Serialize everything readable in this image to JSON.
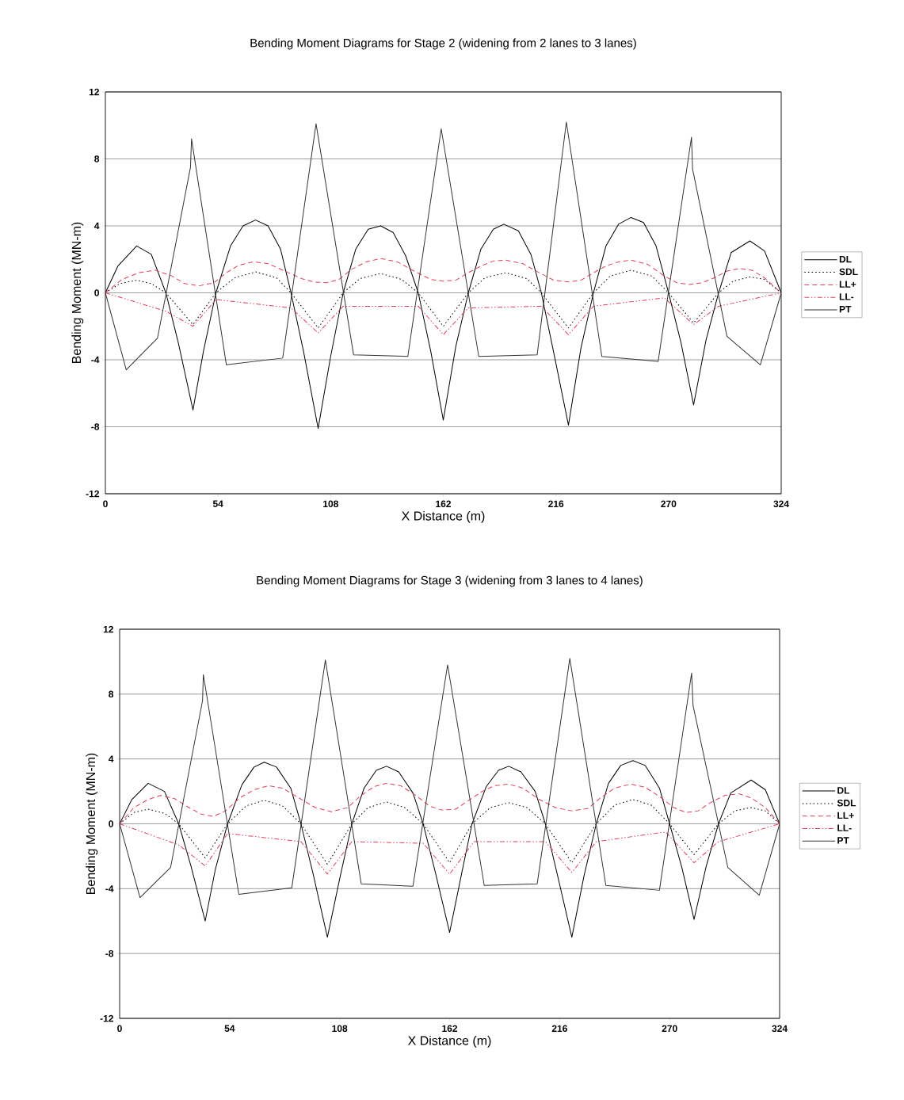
{
  "chart_data": [
    {
      "type": "line",
      "title": "Bending Moment Diagrams for Stage 2 (widening from 2 lanes to 3 lanes)",
      "xlabel": "X Distance (m)",
      "ylabel": "Bending Moment (MN-m)",
      "xlim": [
        0,
        324
      ],
      "ylim": [
        -12,
        12
      ],
      "xticks": [
        0,
        54,
        108,
        162,
        216,
        270,
        324
      ],
      "yticks": [
        -12,
        -8,
        -4,
        0,
        4,
        8,
        12
      ],
      "grid": "y",
      "legend": "right",
      "series": [
        {
          "name": "DL",
          "color": "#000000",
          "line_style": "solid",
          "x": [
            0,
            6,
            15,
            22,
            29,
            35,
            42,
            47,
            53,
            60,
            66,
            72,
            78,
            84,
            89,
            95,
            102,
            108,
            114,
            120,
            126,
            132,
            138,
            144,
            150,
            156,
            162,
            168,
            174,
            180,
            186,
            191,
            198,
            204,
            209,
            215,
            222,
            228,
            234,
            240,
            246,
            252,
            258,
            264,
            270,
            276,
            282,
            288,
            294,
            300,
            309,
            316,
            324
          ],
          "values": [
            0,
            1.6,
            2.8,
            2.3,
            0,
            -3.0,
            -7.0,
            -3.5,
            0,
            2.8,
            4.0,
            4.35,
            4.0,
            2.6,
            0,
            -3.5,
            -8.1,
            -3.8,
            0,
            2.6,
            3.8,
            4.0,
            3.6,
            2.2,
            0,
            -3.5,
            -7.6,
            -3.2,
            0,
            2.6,
            3.8,
            4.1,
            3.7,
            2.3,
            0,
            -3.6,
            -7.9,
            -3.3,
            0,
            2.8,
            4.1,
            4.5,
            4.2,
            2.8,
            0,
            -3.0,
            -6.7,
            -2.8,
            0,
            2.4,
            3.1,
            2.5,
            0
          ]
        },
        {
          "name": "SDL",
          "color": "#000000",
          "line_style": "dotted",
          "x": [
            0,
            7,
            15,
            22,
            29,
            42,
            53,
            62,
            72,
            82,
            89,
            102,
            114,
            122,
            132,
            142,
            150,
            162,
            174,
            182,
            192,
            202,
            209,
            222,
            234,
            242,
            252,
            262,
            270,
            282,
            294,
            301,
            309,
            316,
            324
          ],
          "values": [
            0,
            0.55,
            0.75,
            0.55,
            0,
            -1.9,
            0,
            0.9,
            1.25,
            0.9,
            0,
            -2.1,
            0,
            0.85,
            1.15,
            0.8,
            0,
            -2.0,
            0,
            0.9,
            1.2,
            0.85,
            0,
            -2.1,
            0,
            1.0,
            1.35,
            1.0,
            0,
            -1.8,
            0,
            0.7,
            0.95,
            0.8,
            0
          ]
        },
        {
          "name": "LL+",
          "color": "#e0405a",
          "line_style": "dashed",
          "x": [
            0,
            8,
            16,
            24,
            32,
            38,
            45,
            52,
            58,
            64,
            71,
            78,
            86,
            94,
            100,
            106,
            112,
            118,
            125,
            132,
            140,
            148,
            156,
            162,
            168,
            174,
            180,
            186,
            192,
            200,
            208,
            215,
            222,
            228,
            234,
            240,
            246,
            252,
            260,
            268,
            274,
            280,
            286,
            292,
            298,
            304,
            310,
            316,
            324
          ],
          "values": [
            0,
            0.8,
            1.2,
            1.35,
            1.0,
            0.55,
            0.42,
            0.6,
            1.2,
            1.65,
            1.85,
            1.75,
            1.3,
            0.85,
            0.65,
            0.6,
            0.8,
            1.4,
            1.85,
            2.05,
            1.85,
            1.3,
            0.8,
            0.7,
            0.75,
            1.2,
            1.6,
            1.9,
            1.95,
            1.75,
            1.2,
            0.75,
            0.65,
            0.75,
            1.2,
            1.6,
            1.85,
            1.95,
            1.7,
            1.0,
            0.6,
            0.5,
            0.6,
            0.9,
            1.3,
            1.45,
            1.35,
            0.9,
            0
          ]
        },
        {
          "name": "LL-",
          "color": "#e0405a",
          "line_style": "dashdotted",
          "x": [
            0,
            29,
            42,
            53,
            89,
            102,
            114,
            150,
            162,
            174,
            209,
            222,
            234,
            268,
            282,
            294,
            324
          ],
          "values": [
            0,
            -1.1,
            -2.0,
            -0.4,
            -0.9,
            -2.4,
            -0.8,
            -0.8,
            -2.5,
            -0.9,
            -0.8,
            -2.5,
            -0.8,
            -0.3,
            -1.9,
            -0.8,
            0
          ]
        },
        {
          "name": "PT",
          "color": "#333333",
          "line_style": "solid",
          "x": [
            0,
            10,
            25,
            40.8,
            41.3,
            58,
            85,
            101,
            119,
            145,
            161,
            179,
            207,
            221,
            238,
            265,
            281,
            281.5,
            298,
            314,
            324
          ],
          "values": [
            0,
            -4.6,
            -2.7,
            7.5,
            9.2,
            -4.3,
            -3.9,
            10.1,
            -3.7,
            -3.8,
            9.8,
            -3.8,
            -3.7,
            10.2,
            -3.8,
            -4.1,
            9.3,
            7.4,
            -2.6,
            -4.3,
            0
          ]
        }
      ]
    },
    {
      "type": "line",
      "title": "Bending Moment Diagrams for Stage 3 (widening from 3 lanes to 4 lanes)",
      "xlabel": "X Distance (m)",
      "ylabel": "Bending Moment (MN-m)",
      "xlim": [
        0,
        324
      ],
      "ylim": [
        -12,
        12
      ],
      "xticks": [
        0,
        54,
        108,
        162,
        216,
        270,
        324
      ],
      "yticks": [
        -12,
        -8,
        -4,
        0,
        4,
        8,
        12
      ],
      "grid": "y",
      "legend": "right",
      "series": [
        {
          "name": "DL",
          "color": "#000000",
          "line_style": "solid",
          "x": [
            0,
            6,
            14,
            22,
            29,
            35,
            42,
            47,
            53,
            60,
            66,
            71,
            77,
            84,
            89,
            95,
            102,
            108,
            114,
            120,
            126,
            131,
            137,
            144,
            149,
            155,
            162,
            168,
            173,
            180,
            186,
            191,
            197,
            204,
            209,
            215,
            222,
            228,
            234,
            240,
            246,
            252,
            258,
            265,
            270,
            276,
            282,
            288,
            294,
            300,
            310,
            317,
            324
          ],
          "values": [
            0,
            1.5,
            2.5,
            2.0,
            0,
            -2.6,
            -6.0,
            -2.8,
            0,
            2.4,
            3.5,
            3.8,
            3.5,
            2.2,
            0,
            -3.1,
            -7.0,
            -3.4,
            0,
            2.2,
            3.3,
            3.55,
            3.2,
            1.9,
            0,
            -3.0,
            -6.7,
            -3.0,
            0,
            2.3,
            3.3,
            3.55,
            3.2,
            2.0,
            0,
            -3.2,
            -7.0,
            -3.2,
            0,
            2.5,
            3.6,
            3.9,
            3.6,
            2.2,
            0,
            -2.7,
            -5.9,
            -2.6,
            0,
            1.9,
            2.7,
            2.1,
            0
          ]
        },
        {
          "name": "SDL",
          "color": "#000000",
          "line_style": "dotted",
          "x": [
            0,
            7,
            14,
            22,
            29,
            42,
            53,
            62,
            71,
            80,
            89,
            102,
            114,
            122,
            131,
            140,
            149,
            162,
            173,
            182,
            191,
            200,
            209,
            222,
            234,
            243,
            252,
            261,
            270,
            282,
            294,
            302,
            310,
            317,
            324
          ],
          "values": [
            0,
            0.7,
            0.9,
            0.65,
            0,
            -2.1,
            0,
            1.1,
            1.45,
            1.1,
            0,
            -2.5,
            0,
            1.0,
            1.35,
            1.0,
            0,
            -2.4,
            0,
            1.0,
            1.3,
            1.0,
            0,
            -2.4,
            0,
            1.15,
            1.5,
            1.15,
            0,
            -1.9,
            0,
            0.8,
            1.0,
            0.8,
            0
          ]
        },
        {
          "name": "LL+",
          "color": "#e0405a",
          "line_style": "dashed",
          "x": [
            0,
            7,
            14,
            20,
            27,
            34,
            40,
            46,
            52,
            59,
            66,
            73,
            80,
            88,
            96,
            104,
            112,
            118,
            125,
            131,
            138,
            146,
            152,
            158,
            165,
            172,
            178,
            184,
            191,
            198,
            206,
            214,
            222,
            230,
            236,
            243,
            251,
            258,
            266,
            272,
            278,
            284,
            290,
            297,
            304,
            310,
            317,
            324
          ],
          "values": [
            0,
            1.0,
            1.5,
            1.75,
            1.55,
            1.0,
            0.6,
            0.45,
            0.8,
            1.6,
            2.1,
            2.35,
            2.2,
            1.6,
            1.0,
            0.75,
            1.0,
            1.7,
            2.3,
            2.5,
            2.35,
            1.7,
            1.1,
            0.85,
            0.9,
            1.5,
            2.0,
            2.35,
            2.45,
            2.2,
            1.5,
            1.0,
            0.8,
            0.95,
            1.6,
            2.2,
            2.45,
            2.25,
            1.6,
            1.0,
            0.7,
            0.8,
            1.3,
            1.75,
            1.85,
            1.6,
            1.0,
            0
          ]
        },
        {
          "name": "LL-",
          "color": "#e0405a",
          "line_style": "dashdotted",
          "x": [
            0,
            29,
            42,
            53,
            89,
            102,
            114,
            149,
            162,
            174,
            209,
            222,
            234,
            268,
            282,
            294,
            324
          ],
          "values": [
            0,
            -1.3,
            -2.6,
            -0.6,
            -1.1,
            -3.1,
            -1.1,
            -1.2,
            -3.1,
            -1.1,
            -1.1,
            -3.0,
            -1.1,
            -0.5,
            -2.4,
            -1.1,
            0
          ]
        },
        {
          "name": "PT",
          "color": "#333333",
          "line_style": "solid",
          "x": [
            0,
            10,
            25,
            40.7,
            41.1,
            58.5,
            84.5,
            101,
            118.6,
            144,
            161,
            179,
            205,
            221,
            238.7,
            265,
            280.8,
            281.5,
            298.6,
            314,
            324
          ],
          "values": [
            0,
            -4.55,
            -2.7,
            7.6,
            9.2,
            -4.35,
            -3.95,
            10.1,
            -3.7,
            -3.85,
            9.8,
            -3.8,
            -3.7,
            10.2,
            -3.8,
            -4.1,
            9.3,
            7.3,
            -2.7,
            -4.4,
            0
          ]
        }
      ]
    }
  ]
}
